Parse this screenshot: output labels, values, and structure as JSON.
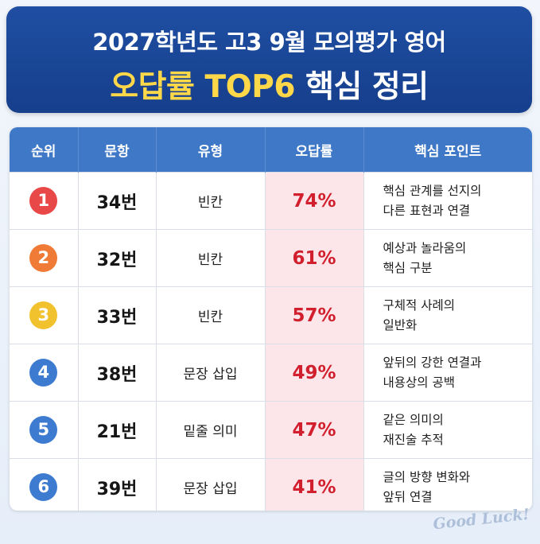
{
  "header": {
    "line1": "2027학년도 고3 9월 모의평가 영어",
    "line2_highlight": "오답률 TOP6",
    "line2_rest": " 핵심 정리"
  },
  "table": {
    "columns": [
      "순위",
      "문항",
      "유형",
      "오답률",
      "핵심 포인트"
    ],
    "rows": [
      {
        "rank": "1",
        "question": "34번",
        "type": "빈칸",
        "rate": "74%",
        "point": [
          "핵심 관계를 선지의",
          "다른 표현과 연결"
        ],
        "badge_color": "#e84848"
      },
      {
        "rank": "2",
        "question": "32번",
        "type": "빈칸",
        "rate": "61%",
        "point": [
          "예상과 놀라움의",
          "핵심 구분"
        ],
        "badge_color": "#f07b36"
      },
      {
        "rank": "3",
        "question": "33번",
        "type": "빈칸",
        "rate": "57%",
        "point": [
          "구체적 사례의",
          "일반화"
        ],
        "badge_color": "#f2c12e"
      },
      {
        "rank": "4",
        "question": "38번",
        "type": "문장 삽입",
        "rate": "49%",
        "point": [
          "앞뒤의 강한 연결과",
          "내용상의 공백"
        ],
        "badge_color": "#3d7bd0"
      },
      {
        "rank": "5",
        "question": "21번",
        "type": "밑줄 의미",
        "rate": "47%",
        "point": [
          "같은 의미의",
          "재진술 추적"
        ],
        "badge_color": "#3d7bd0"
      },
      {
        "rank": "6",
        "question": "39번",
        "type": "문장 삽입",
        "rate": "41%",
        "point": [
          "글의 방향 변화와",
          "앞뒤 연결"
        ],
        "badge_color": "#3d7bd0"
      }
    ]
  },
  "footer": {
    "mark": "Good Luck!"
  }
}
